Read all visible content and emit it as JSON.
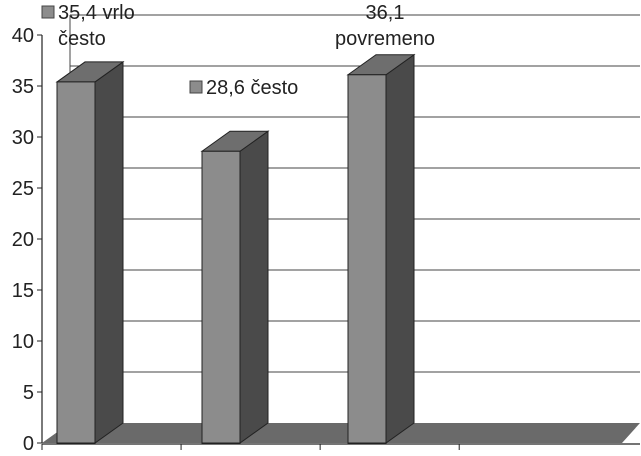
{
  "chart_data": {
    "type": "bar",
    "categories": [
      "vrlo često",
      "često",
      "povremeno"
    ],
    "values": [
      35.4,
      28.6,
      36.1
    ],
    "ylim": [
      0,
      40
    ],
    "yticks": [
      0,
      5,
      10,
      15,
      20,
      25,
      30,
      35,
      40
    ],
    "ytick_labels": [
      "0",
      "5",
      "10",
      "15",
      "20",
      "25",
      "30",
      "35",
      "40"
    ],
    "grid": true,
    "three_d": true,
    "data_labels": [
      {
        "lines": [
          "35,4 vrlo",
          "često"
        ],
        "marker": true
      },
      {
        "lines": [
          "28,6 često"
        ],
        "marker": true
      },
      {
        "lines": [
          "36,1",
          "povremeno"
        ],
        "marker": false
      }
    ],
    "colors": {
      "bar_front": "#8c8c8c",
      "bar_side": "#4a4a4a",
      "bar_top": "#6e6e6e",
      "floor": "#6a6a6a",
      "grid": "#444444",
      "marker": "#8c8c8c"
    }
  }
}
